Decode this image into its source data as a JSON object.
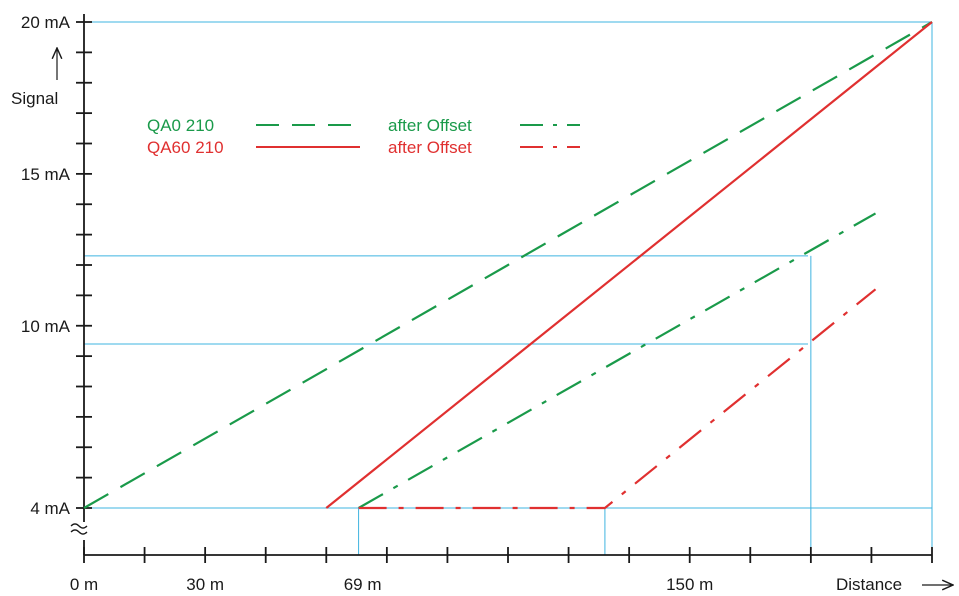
{
  "chart_data": {
    "type": "line",
    "ylabel": "Signal",
    "xlabel": "Distance",
    "y_unit": "mA",
    "x_unit": "m",
    "ylim": [
      4,
      20
    ],
    "xlim": [
      0,
      210
    ],
    "y_ticks": [
      {
        "value": 4,
        "label": "4 mA"
      },
      {
        "value": 10,
        "label": "10 mA"
      },
      {
        "value": 15,
        "label": "15 mA"
      },
      {
        "value": 20,
        "label": "20 mA"
      }
    ],
    "x_ticks": [
      {
        "value": 0,
        "label": "0 m"
      },
      {
        "value": 30,
        "label": "30 m"
      },
      {
        "value": 69,
        "label": "69 m"
      },
      {
        "value": 150,
        "label": "150 m"
      }
    ],
    "series": [
      {
        "name": "QA0 210",
        "color": "#1a9a4a",
        "style": "dashed",
        "points": [
          [
            0,
            4
          ],
          [
            210,
            20
          ]
        ]
      },
      {
        "name": "QA60 210",
        "color": "#e03030",
        "style": "solid",
        "points": [
          [
            60,
            4
          ],
          [
            210,
            20
          ]
        ]
      },
      {
        "name": "after Offset",
        "color": "#1a9a4a",
        "style": "dash-dot",
        "points": [
          [
            68,
            4
          ],
          [
            196,
            13.7
          ]
        ]
      },
      {
        "name": "after Offset",
        "color": "#e03030",
        "style": "dash-dot",
        "points": [
          [
            68,
            4
          ],
          [
            129,
            4
          ],
          [
            196,
            11.2
          ]
        ]
      }
    ],
    "reference_lines": {
      "horizontal": [
        4,
        9.4,
        12.3,
        20
      ],
      "vertical": [
        68,
        129,
        180,
        210
      ]
    },
    "colors": {
      "axis": "#1a1a1a",
      "reference": "#3fb4e0",
      "green": "#1a9a4a",
      "red": "#e03030"
    }
  }
}
